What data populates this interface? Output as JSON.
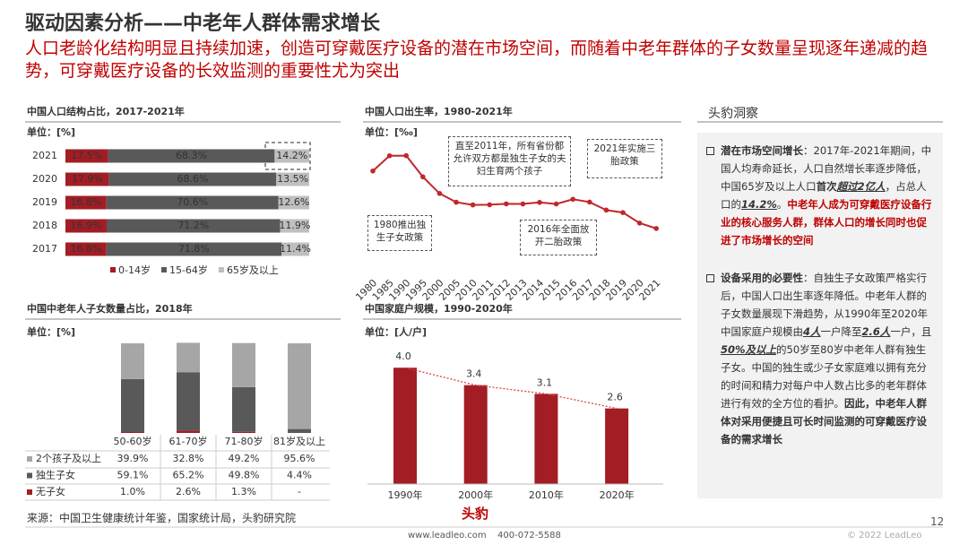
{
  "header": {
    "title": "驱动因素分析——中老年人群体需求增长",
    "subtitle": "人口老龄化结构明显且持续加速，创造可穿戴医疗设备的潜在市场空间，而随着中老年群体的子女数量呈现逐年递减的趋势，可穿戴医疗设备的长效监测的重要性尤为突出"
  },
  "chart_data": [
    {
      "type": "stacked-bar",
      "orientation": "horizontal",
      "title": "中国人口结构占比，2017-2021年",
      "unit": "单位：[%]",
      "categories": [
        "2021",
        "2020",
        "2019",
        "2018",
        "2017"
      ],
      "xlim": [
        0,
        100
      ],
      "series": [
        {
          "name": "0-14岁",
          "color": "#a31d24",
          "values": [
            17.5,
            17.9,
            16.8,
            16.9,
            16.8
          ],
          "value_labels": [
            "17.5%",
            "17.9%",
            "16.8%",
            "16.9%",
            "16.8%"
          ]
        },
        {
          "name": "15-64岁",
          "color": "#595959",
          "values": [
            68.3,
            68.6,
            70.6,
            71.2,
            71.8
          ],
          "value_labels": [
            "68.3%",
            "68.6%",
            "70.6%",
            "71.2%",
            "71.8%"
          ]
        },
        {
          "name": "65岁及以上",
          "color": "#bfbfbf",
          "values": [
            14.2,
            13.5,
            12.6,
            11.9,
            11.4
          ],
          "value_labels": [
            "14.2%",
            "13.5%",
            "12.6%",
            "11.9%",
            "11.4%"
          ]
        }
      ],
      "legend": "bottom"
    },
    {
      "type": "line",
      "title": "中国人口出生率，1980-2021年",
      "unit": "单位：[‰]",
      "categories": [
        "1980",
        "1985",
        "1990",
        "1995",
        "2000",
        "2005",
        "2010",
        "2011",
        "2012",
        "2013",
        "2014",
        "2015",
        "2016",
        "2017",
        "2018",
        "2019",
        "2020",
        "2021"
      ],
      "values": [
        18.21,
        21.04,
        21.06,
        17.12,
        14.03,
        12.4,
        11.9,
        11.93,
        12.1,
        12.08,
        12.37,
        12.07,
        12.95,
        12.43,
        10.94,
        10.48,
        8.52,
        7.52
      ],
      "color": "#c0272d",
      "ylim": [
        0,
        25
      ],
      "annotations": [
        {
          "text": "1980推出独生子女政策"
        },
        {
          "text": "直至2011年，所有省份都允许双方都是独生子女的夫妇生育两个孩子"
        },
        {
          "text": "2016年全面放开二胎政策"
        },
        {
          "text": "2021年实施三胎政策"
        }
      ]
    },
    {
      "type": "stacked-bar",
      "orientation": "vertical",
      "title": "中国中老年人子女数量占比，2018年",
      "unit": "单位：[%]",
      "categories": [
        "50-60岁",
        "61-70岁",
        "71-80岁",
        "81岁及以上"
      ],
      "ylim": [
        0,
        100
      ],
      "series": [
        {
          "name": "无子女",
          "color": "#a31d24",
          "values": [
            1.0,
            2.6,
            1.3,
            null
          ],
          "value_labels": [
            "1.0%",
            "2.6%",
            "1.3%",
            "-"
          ]
        },
        {
          "name": "独生子女",
          "color": "#595959",
          "values": [
            59.1,
            65.2,
            49.8,
            4.4
          ],
          "value_labels": [
            "59.1%",
            "65.2%",
            "49.8%",
            "4.4%"
          ]
        },
        {
          "name": "2个孩子及以上",
          "color": "#a6a6a6",
          "values": [
            39.9,
            32.8,
            49.2,
            95.6
          ],
          "value_labels": [
            "39.9%",
            "32.8%",
            "49.2%",
            "95.6%"
          ]
        }
      ],
      "legend": "table"
    },
    {
      "type": "bar",
      "title": "中国家庭户规模，1990-2020年",
      "unit": "单位：[人/户]",
      "categories": [
        "1990年",
        "2000年",
        "2010年",
        "2020年"
      ],
      "values": [
        4.0,
        3.4,
        3.1,
        2.6
      ],
      "value_labels": [
        "4.0",
        "3.4",
        "3.1",
        "2.6"
      ],
      "color": "#a31d24",
      "trend_color": "#e04040",
      "ylim": [
        0,
        4.5
      ]
    }
  ],
  "insights": {
    "title": "头豹洞察",
    "items": [
      [
        {
          "text": "潜在市场空间增长",
          "style": "bold"
        },
        {
          "text": "：2017年-2021年期间，中国人均寿命延长，人口自然增长率逐步降低，中国65岁及以上人口",
          "style": "normal"
        },
        {
          "text": "首次",
          "style": "bold"
        },
        {
          "text": "超过2亿人",
          "style": "emph"
        },
        {
          "text": "，占总人口的",
          "style": "normal"
        },
        {
          "text": "14.2%",
          "style": "emph"
        },
        {
          "text": "。",
          "style": "normal"
        },
        {
          "text": "中老年人成为可穿戴医疗设备行业的核心服务人群，群体人口的增长同时也促进了市场增长的空间",
          "style": "red"
        }
      ],
      [
        {
          "text": "设备采用的必要性",
          "style": "bold"
        },
        {
          "text": "：自独生子女政策严格实行后，中国人口出生率逐年降低。中老年人群的子女数量展现下滑趋势，从1990年至2020年中国家庭户规模由",
          "style": "normal"
        },
        {
          "text": "4人",
          "style": "emph"
        },
        {
          "text": "一户降至",
          "style": "normal"
        },
        {
          "text": "2.6人",
          "style": "emph"
        },
        {
          "text": "一户，且",
          "style": "normal"
        },
        {
          "text": "50%及以上",
          "style": "emph"
        },
        {
          "text": "的50岁至80岁中老年人群有独生子女。中国的独生或少子女家庭难以拥有充分的时间和精力对每户中人数占比多的老年群体进行有效的全方位的看护。",
          "style": "normal"
        },
        {
          "text": "因此，中老年人群体对采用便捷且可长时间监测的可穿戴医疗设备的需求增长",
          "style": "bold"
        }
      ]
    ]
  },
  "footer": {
    "source": "来源：中国卫生健康统计年鉴，国家统计局，头豹研究院",
    "logo": "头豹",
    "website": "www.leadleo.com",
    "phone": "400-072-5588",
    "page": "12",
    "copyright": "© 2022 LeadLeo"
  }
}
